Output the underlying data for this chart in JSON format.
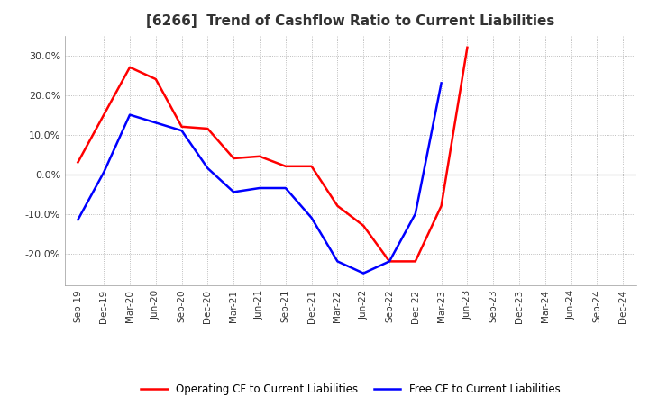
{
  "title": "[6266]  Trend of Cashflow Ratio to Current Liabilities",
  "x_labels": [
    "Sep-19",
    "Dec-19",
    "Mar-20",
    "Jun-20",
    "Sep-20",
    "Dec-20",
    "Mar-21",
    "Jun-21",
    "Sep-21",
    "Dec-21",
    "Mar-22",
    "Jun-22",
    "Sep-22",
    "Dec-22",
    "Mar-23",
    "Jun-23",
    "Sep-23",
    "Dec-23",
    "Mar-24",
    "Jun-24",
    "Sep-24",
    "Dec-24"
  ],
  "operating_cf": [
    3.0,
    15.0,
    27.0,
    24.0,
    12.0,
    11.5,
    4.0,
    4.5,
    2.0,
    2.0,
    -8.0,
    -13.0,
    -22.0,
    -22.0,
    -8.0,
    32.0,
    null,
    null,
    null,
    null,
    null,
    null
  ],
  "free_cf": [
    -11.5,
    0.5,
    15.0,
    13.0,
    11.0,
    1.5,
    -4.5,
    -3.5,
    -3.5,
    -11.0,
    -22.0,
    -25.0,
    -22.0,
    -10.0,
    23.0,
    null,
    null,
    null,
    null,
    null,
    null,
    null
  ],
  "operating_color": "#ff0000",
  "free_color": "#0000ff",
  "ylim": [
    -28,
    35
  ],
  "yticks": [
    -20.0,
    -10.0,
    0.0,
    10.0,
    20.0,
    30.0
  ],
  "background_color": "#ffffff",
  "grid_color": "#aaaaaa",
  "grid_style": ":",
  "title_fontsize": 11,
  "legend_labels": [
    "Operating CF to Current Liabilities",
    "Free CF to Current Liabilities"
  ]
}
